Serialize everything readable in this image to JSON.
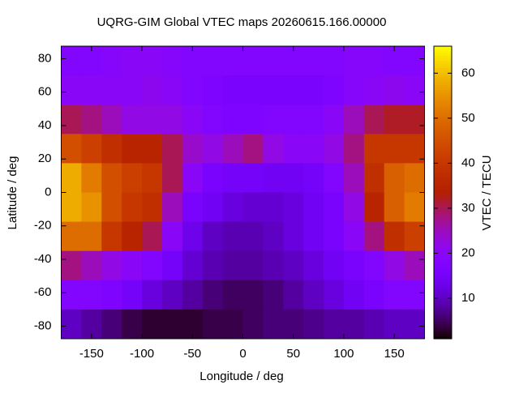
{
  "chart_data": {
    "type": "heatmap",
    "title": "UQRG-GIM Global VTEC maps 20260615.166.00000",
    "xlabel": "Longitude / deg",
    "ylabel": "Latitude / deg",
    "colorbar_label": "VTEC / TECU",
    "x": [
      -170,
      -150,
      -130,
      -110,
      -90,
      -70,
      -50,
      -30,
      -10,
      10,
      30,
      50,
      70,
      90,
      110,
      130,
      150,
      170
    ],
    "y": [
      78.75,
      61.25,
      43.75,
      26.25,
      8.75,
      -8.75,
      -26.25,
      -43.75,
      -61.25,
      -78.75
    ],
    "z": [
      [
        18,
        18,
        19,
        20,
        20,
        19,
        18,
        18,
        18,
        18,
        18,
        18,
        18,
        18,
        19,
        19,
        18,
        18
      ],
      [
        20,
        20,
        20,
        20,
        21,
        20,
        18,
        17,
        16,
        16,
        16,
        16,
        16,
        17,
        19,
        20,
        21,
        20
      ],
      [
        30,
        28,
        25,
        22,
        22,
        22,
        20,
        18,
        17,
        17,
        18,
        18,
        18,
        20,
        25,
        30,
        32,
        32
      ],
      [
        45,
        42,
        38,
        35,
        35,
        30,
        24,
        22,
        25,
        28,
        22,
        20,
        20,
        22,
        28,
        40,
        40,
        40
      ],
      [
        58,
        52,
        45,
        42,
        40,
        30,
        20,
        16,
        15,
        15,
        14,
        14,
        15,
        18,
        25,
        38,
        48,
        50
      ],
      [
        58,
        55,
        45,
        40,
        38,
        25,
        16,
        14,
        12,
        11,
        11,
        12,
        14,
        16,
        22,
        35,
        48,
        52
      ],
      [
        50,
        50,
        40,
        35,
        30,
        20,
        13,
        10,
        9,
        9,
        10,
        12,
        14,
        16,
        20,
        28,
        38,
        42
      ],
      [
        28,
        25,
        22,
        20,
        18,
        15,
        11,
        9,
        8,
        8,
        9,
        10,
        12,
        14,
        16,
        18,
        22,
        25
      ],
      [
        18,
        18,
        17,
        15,
        12,
        10,
        8,
        6,
        5,
        5,
        6,
        8,
        10,
        12,
        14,
        16,
        18,
        18
      ],
      [
        10,
        8,
        6,
        4,
        3,
        3,
        3,
        4,
        4,
        5,
        6,
        6,
        7,
        8,
        8,
        9,
        10,
        10
      ]
    ],
    "xlim": [
      -180,
      180
    ],
    "ylim": [
      -87.5,
      87.5
    ],
    "zlim": [
      1,
      66
    ],
    "xticks": [
      -150,
      -100,
      -50,
      0,
      50,
      100,
      150
    ],
    "yticks": [
      -80,
      -60,
      -40,
      -20,
      0,
      20,
      40,
      60,
      80
    ],
    "zticks": [
      10,
      20,
      30,
      40,
      50,
      60
    ],
    "palette": "rgbformulae-7-5-15"
  }
}
